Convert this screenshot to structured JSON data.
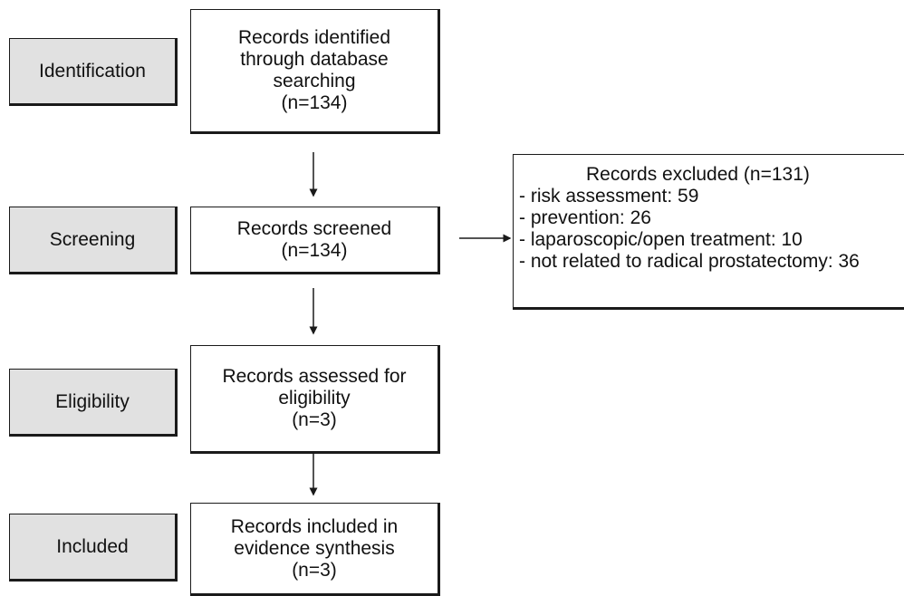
{
  "stages": {
    "identification": "Identification",
    "screening": "Screening",
    "eligibility": "Eligibility",
    "included": "Included"
  },
  "boxes": {
    "identified": [
      "Records identified",
      "through database",
      "searching",
      "(n=134)"
    ],
    "screened": [
      "Records screened",
      "(n=134)"
    ],
    "assessed": [
      "Records assessed for",
      "eligibility",
      "(n=3)"
    ],
    "included": [
      "Records included in",
      "evidence synthesis",
      "(n=3)"
    ]
  },
  "excluded": {
    "title": "Records excluded (n=131)",
    "items": [
      "- risk assessment: 59",
      "- prevention: 26",
      "- laparoscopic/open treatment: 10",
      "- not related to radical prostatectomy: 36"
    ]
  }
}
